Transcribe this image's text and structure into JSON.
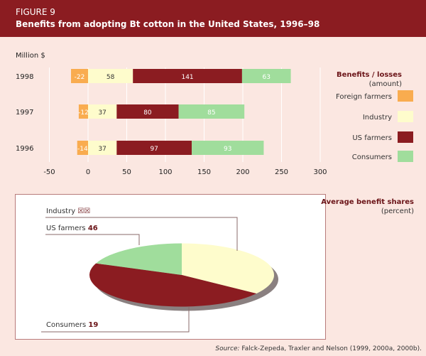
{
  "header": {
    "figure": "FIGURE 9",
    "title": "Benefits from adopting Bt cotton in the United States, 1996–98"
  },
  "chart_data": [
    {
      "type": "bar",
      "stacked": true,
      "orientation": "horizontal",
      "ylabel": "Million $",
      "categories": [
        "1998",
        "1997",
        "1996"
      ],
      "series": [
        {
          "name": "Foreign farmers",
          "color": "#f9ac4f",
          "values": [
            -22,
            -12,
            -14
          ]
        },
        {
          "name": "Industry",
          "color": "#fefccc",
          "values": [
            58,
            37,
            37
          ]
        },
        {
          "name": "US farmers",
          "color": "#8b1c21",
          "values": [
            141,
            80,
            97
          ]
        },
        {
          "name": "Consumers",
          "color": "#a0dd9c",
          "values": [
            63,
            85,
            93
          ]
        }
      ],
      "xlim": [
        -50,
        300
      ],
      "xticks": [
        "-50",
        "0",
        "50",
        "100",
        "150",
        "200",
        "250",
        "300"
      ],
      "legend_title": "Benefits / losses",
      "legend_subtitle": "(amount)",
      "legend_position": "right"
    },
    {
      "type": "pie",
      "title": "Average benefit shares",
      "subtitle": "(percent)",
      "slices": [
        {
          "name": "Industry",
          "label_value": "☒☒",
          "color": "#fefccc"
        },
        {
          "name": "US farmers",
          "value": 46,
          "label_value": "46",
          "color": "#8b1c21"
        },
        {
          "name": "Consumers",
          "value": 19,
          "label_value": "19",
          "color": "#a0dd9c"
        }
      ]
    }
  ],
  "source_label": "Source:",
  "source": "Falck-Zepeda, Traxler and Nelson (1999, 2000a, 2000b)."
}
